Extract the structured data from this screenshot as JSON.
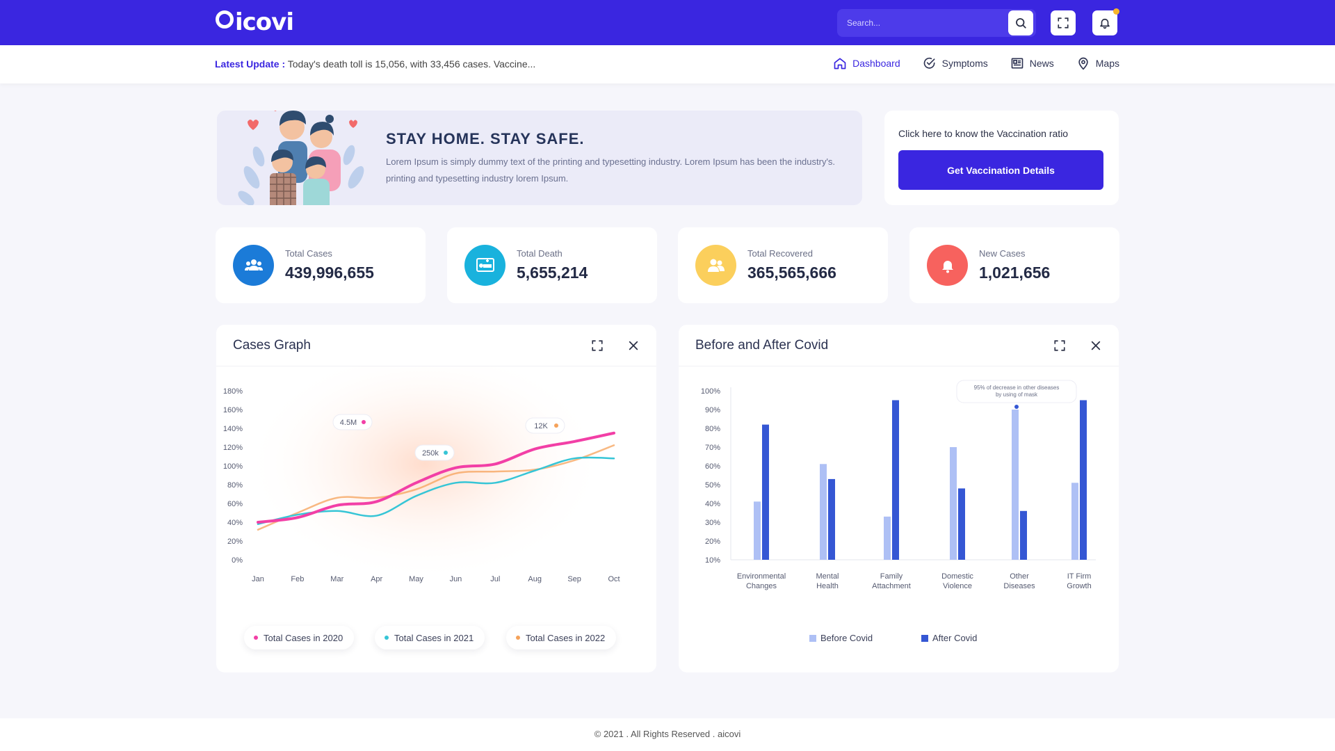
{
  "brand": {
    "name": "icovi",
    "accent": "#3a26e0"
  },
  "search": {
    "placeholder": "Search..."
  },
  "topbar_icons": [
    "search-icon",
    "fullscreen-icon",
    "bell-icon"
  ],
  "update": {
    "label": "Latest Update :",
    "text": "Today's death toll is 15,056, with 33,456 cases. Vaccine..."
  },
  "nav": [
    {
      "label": "Dashboard",
      "icon": "home-icon",
      "active": true
    },
    {
      "label": "Symptoms",
      "icon": "check-circle-icon",
      "active": false
    },
    {
      "label": "News",
      "icon": "newspaper-icon",
      "active": false
    },
    {
      "label": "Maps",
      "icon": "map-pin-icon",
      "active": false
    }
  ],
  "hero": {
    "title": "STAY HOME. STAY SAFE.",
    "text": "Lorem Ipsum is simply dummy text of the printing and typesetting industry. Lorem Ipsum has been the industry's. printing and typesetting industry lorem Ipsum."
  },
  "vaccination": {
    "title": "Click here to know the Vaccination ratio",
    "button": "Get Vaccination Details"
  },
  "stats": [
    {
      "label": "Total Cases",
      "value": "439,996,655",
      "color": "#1b7bd8",
      "icon": "users-icon"
    },
    {
      "label": "Total Death",
      "value": "5,655,214",
      "color": "#19b2dd",
      "icon": "hospital-bed-icon"
    },
    {
      "label": "Total Recovered",
      "value": "365,565,666",
      "color": "#fbcf5c",
      "icon": "user-group-icon"
    },
    {
      "label": "New Cases",
      "value": "1,021,656",
      "color": "#f7625e",
      "icon": "bell-icon"
    }
  ],
  "cases_card": {
    "title": "Cases Graph"
  },
  "covid_card": {
    "title": "Before and After Covid"
  },
  "chart_data": [
    {
      "type": "line",
      "title": "Cases Graph",
      "x": [
        "Jan",
        "Feb",
        "Mar",
        "Apr",
        "May",
        "Jun",
        "Jul",
        "Aug",
        "Sep",
        "Oct"
      ],
      "y_ticks": [
        "0%",
        "20%",
        "40%",
        "60%",
        "80%",
        "100%",
        "120%",
        "140%",
        "160%",
        "180%"
      ],
      "ylim": [
        0,
        180
      ],
      "series": [
        {
          "name": "Total Cases in 2020",
          "color": "#f23fa6",
          "values": [
            40,
            45,
            58,
            62,
            82,
            98,
            102,
            118,
            126,
            135
          ]
        },
        {
          "name": "Total Cases in 2021",
          "color": "#36c5d6",
          "values": [
            38,
            48,
            52,
            47,
            68,
            82,
            82,
            95,
            108,
            108
          ]
        },
        {
          "name": "Total Cases in 2022",
          "color": "#f5a25a",
          "values": [
            32,
            50,
            66,
            66,
            75,
            92,
            94,
            96,
            106,
            122
          ]
        }
      ],
      "annotations": [
        {
          "text": "4.5M",
          "color": "#f23fa6"
        },
        {
          "text": "250k",
          "color": "#36c5d6"
        },
        {
          "text": "12K",
          "color": "#f5a25a"
        }
      ]
    },
    {
      "type": "bar",
      "title": "Before and After Covid",
      "categories": [
        [
          "Environmental",
          "Changes"
        ],
        [
          "Mental",
          "Health"
        ],
        [
          "Family",
          "Attachment"
        ],
        [
          "Domestic",
          "Violence"
        ],
        [
          "Other",
          "Diseases"
        ],
        [
          "IT Firm",
          "Growth"
        ]
      ],
      "y_ticks": [
        "10%",
        "20%",
        "30%",
        "40%",
        "50%",
        "60%",
        "70%",
        "80%",
        "90%",
        "100%"
      ],
      "ylim": [
        10,
        100
      ],
      "series": [
        {
          "name": "Before Covid",
          "color": "#aec0f5",
          "values": [
            41,
            61,
            33,
            70,
            90,
            51
          ]
        },
        {
          "name": "After Covid",
          "color": "#3557d4",
          "values": [
            82,
            53,
            95,
            48,
            36,
            95
          ]
        }
      ],
      "annotation": {
        "text": [
          "95% of decrease in other diseases",
          "by using of mask"
        ]
      }
    }
  ],
  "footer": {
    "text": "© 2021 . All Rights Reserved . aicovi"
  }
}
